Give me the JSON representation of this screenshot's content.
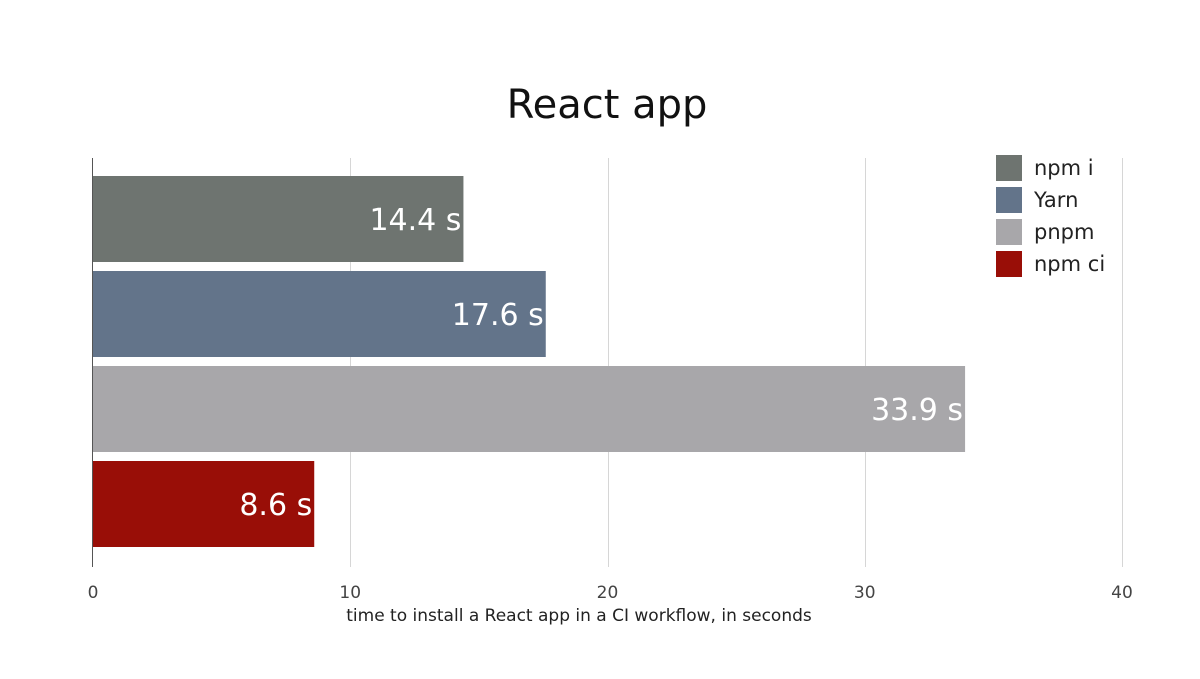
{
  "chart_data": {
    "type": "bar",
    "orientation": "horizontal",
    "title": "React app",
    "xlabel": "time to install a React app in a CI workflow, in seconds",
    "ylabel": "",
    "xlim": [
      0,
      40
    ],
    "xticks": [
      0,
      10,
      20,
      30,
      40
    ],
    "grid": true,
    "legend_position": "top-right",
    "categories": [
      "npm i",
      "Yarn",
      "pnpm",
      "npm ci"
    ],
    "values": [
      14.4,
      17.6,
      33.9,
      8.6
    ],
    "value_labels": [
      "14.4 s",
      "17.6 s",
      "33.9 s",
      "8.6 s"
    ],
    "colors": [
      "#6e7470",
      "#63748a",
      "#a8a7aa",
      "#990e07"
    ],
    "legend": [
      "npm i",
      "Yarn",
      "pnpm",
      "npm ci"
    ]
  }
}
